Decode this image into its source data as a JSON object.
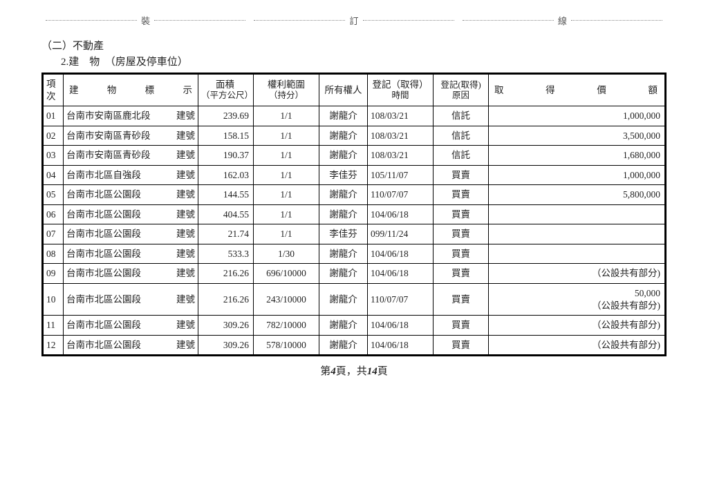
{
  "perforation": {
    "seg1": "裝",
    "seg2": "訂",
    "seg3": "線"
  },
  "section": "（二）不動產",
  "subsection": "2.建　物　（房屋及停車位）",
  "columns": {
    "idx": "項 次",
    "desc": {
      "left": "建",
      "mid": "物",
      "mid2": "標",
      "right": "示"
    },
    "area": {
      "top": "面積",
      "bottom": "（平方公尺）"
    },
    "share": {
      "top": "權利範圍",
      "bottom": "（持分）"
    },
    "owner": "所有權人",
    "date": {
      "top": "登記（取得）",
      "bottom": "時間"
    },
    "reason": {
      "top": "登記(取得)",
      "bottom": "原因"
    },
    "value": {
      "a": "取",
      "b": "得",
      "c": "價",
      "d": "額"
    }
  },
  "rows": [
    {
      "idx": "01",
      "desc_l": "台南市安南區鹿北段",
      "desc_r": "建號",
      "area": "239.69",
      "share": "1/1",
      "owner": "謝龍介",
      "date": "108/03/21",
      "reason": "信託",
      "value": "1,000,000"
    },
    {
      "idx": "02",
      "desc_l": "台南市安南區青砂段",
      "desc_r": "建號",
      "area": "158.15",
      "share": "1/1",
      "owner": "謝龍介",
      "date": "108/03/21",
      "reason": "信託",
      "value": "3,500,000"
    },
    {
      "idx": "03",
      "desc_l": "台南市安南區青砂段",
      "desc_r": "建號",
      "area": "190.37",
      "share": "1/1",
      "owner": "謝龍介",
      "date": "108/03/21",
      "reason": "信託",
      "value": "1,680,000"
    },
    {
      "idx": "04",
      "desc_l": "台南市北區自強段",
      "desc_r": "建號",
      "area": "162.03",
      "share": "1/1",
      "owner": "李佳芬",
      "date": "105/11/07",
      "reason": "買賣",
      "value": "1,000,000"
    },
    {
      "idx": "05",
      "desc_l": "台南市北區公園段",
      "desc_r": "建號",
      "area": "144.55",
      "share": "1/1",
      "owner": "謝龍介",
      "date": "110/07/07",
      "reason": "買賣",
      "value": "5,800,000"
    },
    {
      "idx": "06",
      "desc_l": "台南市北區公園段",
      "desc_r": "建號",
      "area": "404.55",
      "share": "1/1",
      "owner": "謝龍介",
      "date": "104/06/18",
      "reason": "買賣",
      "value": ""
    },
    {
      "idx": "07",
      "desc_l": "台南市北區公園段",
      "desc_r": "建號",
      "area": "21.74",
      "share": "1/1",
      "owner": "李佳芬",
      "date": "099/11/24",
      "reason": "買賣",
      "value": ""
    },
    {
      "idx": "08",
      "desc_l": "台南市北區公園段",
      "desc_r": "建號",
      "area": "533.3",
      "share": "1/30",
      "owner": "謝龍介",
      "date": "104/06/18",
      "reason": "買賣",
      "value": ""
    },
    {
      "idx": "09",
      "desc_l": "台南市北區公園段",
      "desc_r": "建號",
      "area": "216.26",
      "share": "696/10000",
      "owner": "謝龍介",
      "date": "104/06/18",
      "reason": "買賣",
      "value": "（公設共有部分)"
    },
    {
      "idx": "10",
      "desc_l": "台南市北區公園段",
      "desc_r": "建號",
      "area": "216.26",
      "share": "243/10000",
      "owner": "謝龍介",
      "date": "110/07/07",
      "reason": "買賣",
      "value": "50,000\n（公設共有部分)"
    },
    {
      "idx": "11",
      "desc_l": "台南市北區公園段",
      "desc_r": "建號",
      "area": "309.26",
      "share": "782/10000",
      "owner": "謝龍介",
      "date": "104/06/18",
      "reason": "買賣",
      "value": "（公設共有部分)"
    },
    {
      "idx": "12",
      "desc_l": "台南市北區公園段",
      "desc_r": "建號",
      "area": "309.26",
      "share": "578/10000",
      "owner": "謝龍介",
      "date": "104/06/18",
      "reason": "買賣",
      "value": "（公設共有部分)"
    }
  ],
  "footer": {
    "prefix": "第",
    "page": "4",
    "mid": "頁，共",
    "total": "14",
    "suffix": "頁"
  }
}
